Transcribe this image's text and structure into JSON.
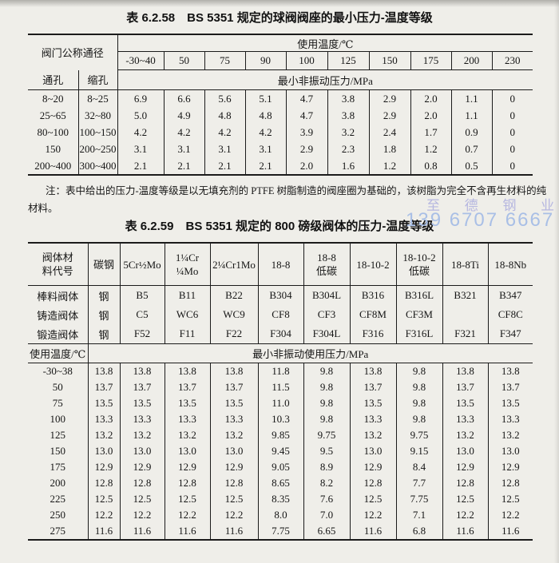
{
  "table1": {
    "title": "表 6.2.58　BS 5351 规定的球阀阀座的最小压力-温度等级",
    "header": {
      "size_label": "阀门公称通径",
      "temp_label": "使用温度/℃",
      "temps": [
        "-30~40",
        "50",
        "75",
        "90",
        "100",
        "125",
        "150",
        "175",
        "200",
        "230"
      ],
      "full_bore": "通孔",
      "reduced_bore": "缩孔",
      "pressure_label": "最小非振动压力/MPa"
    },
    "rows": [
      [
        "8~20",
        "8~25",
        "6.9",
        "6.6",
        "5.6",
        "5.1",
        "4.7",
        "3.8",
        "2.9",
        "2.0",
        "1.1",
        "0"
      ],
      [
        "25~65",
        "32~80",
        "5.0",
        "4.9",
        "4.8",
        "4.8",
        "4.7",
        "3.8",
        "2.9",
        "2.0",
        "1.1",
        "0"
      ],
      [
        "80~100",
        "100~150",
        "4.2",
        "4.2",
        "4.2",
        "4.2",
        "3.9",
        "3.2",
        "2.4",
        "1.7",
        "0.9",
        "0"
      ],
      [
        "150",
        "200~250",
        "3.1",
        "3.1",
        "3.1",
        "3.1",
        "2.9",
        "2.3",
        "1.8",
        "1.2",
        "0.7",
        "0"
      ],
      [
        "200~400",
        "300~400",
        "2.1",
        "2.1",
        "2.1",
        "2.1",
        "2.0",
        "1.6",
        "1.2",
        "0.8",
        "0.5",
        "0"
      ]
    ]
  },
  "note": {
    "line1": "注：表中给出的压力-温度等级是以无填充剂的 PTFE 树脂制造的阀座圈为基础的，该树脂为完全不含再生材料的纯",
    "line2": "材料。"
  },
  "table2": {
    "title": "表 6.2.59　BS 5351 规定的 800 磅级阀体的压力-温度等级",
    "header": [
      "阀体材\n料代号",
      "碳钢",
      "5Cr½Mo",
      "1¼Cr\n¼Mo",
      "2¼Cr1Mo",
      "18-8",
      "18-8\n低碳",
      "18-10-2",
      "18-10-2\n低碳",
      "18-8Ti",
      "18-8Nb"
    ],
    "material_rows": [
      [
        "棒料阀体",
        "钢",
        "B5",
        "B11",
        "B22",
        "B304",
        "B304L",
        "B316",
        "B316L",
        "B321",
        "B347"
      ],
      [
        "铸造阀体",
        "钢",
        "C5",
        "WC6",
        "WC9",
        "CF8",
        "CF3",
        "CF8M",
        "CF3M",
        "",
        "CF8C"
      ],
      [
        "锻造阀体",
        "钢",
        "F52",
        "F11",
        "F22",
        "F304",
        "F304L",
        "F316",
        "F316L",
        "F321",
        "F347"
      ]
    ],
    "temp_label": "使用温度/℃",
    "pressure_label": "最小非振动使用压力/MPa",
    "rows": [
      [
        "-30~38",
        "13.8",
        "13.8",
        "13.8",
        "13.8",
        "11.8",
        "9.8",
        "13.8",
        "9.8",
        "13.8",
        "13.8"
      ],
      [
        "50",
        "13.7",
        "13.7",
        "13.7",
        "13.7",
        "11.5",
        "9.8",
        "13.7",
        "9.8",
        "13.7",
        "13.7"
      ],
      [
        "75",
        "13.5",
        "13.5",
        "13.5",
        "13.5",
        "11.0",
        "9.8",
        "13.5",
        "9.8",
        "13.5",
        "13.5"
      ],
      [
        "100",
        "13.3",
        "13.3",
        "13.3",
        "13.3",
        "10.3",
        "9.8",
        "13.3",
        "9.8",
        "13.3",
        "13.3"
      ],
      [
        "125",
        "13.2",
        "13.2",
        "13.2",
        "13.2",
        "9.85",
        "9.75",
        "13.2",
        "9.75",
        "13.2",
        "13.2"
      ],
      [
        "150",
        "13.0",
        "13.0",
        "13.0",
        "13.0",
        "9.45",
        "9.5",
        "13.0",
        "9.15",
        "13.0",
        "13.0"
      ],
      [
        "175",
        "12.9",
        "12.9",
        "12.9",
        "12.9",
        "9.05",
        "8.9",
        "12.9",
        "8.4",
        "12.9",
        "12.9"
      ],
      [
        "200",
        "12.8",
        "12.8",
        "12.8",
        "12.8",
        "8.65",
        "8.2",
        "12.8",
        "7.7",
        "12.8",
        "12.8"
      ],
      [
        "225",
        "12.5",
        "12.5",
        "12.5",
        "12.5",
        "8.35",
        "7.6",
        "12.5",
        "7.75",
        "12.5",
        "12.5"
      ],
      [
        "250",
        "12.2",
        "12.2",
        "12.2",
        "12.2",
        "8.0",
        "7.0",
        "12.2",
        "7.1",
        "12.2",
        "12.2"
      ],
      [
        "275",
        "11.6",
        "11.6",
        "11.6",
        "11.6",
        "7.75",
        "6.65",
        "11.6",
        "6.8",
        "11.6",
        "11.6"
      ]
    ]
  },
  "watermark": {
    "company": "至 德 钢 业",
    "phone": "139 6707 6667",
    "company_color": "#b6b7e0",
    "phone_color": "#a9bfe6"
  }
}
